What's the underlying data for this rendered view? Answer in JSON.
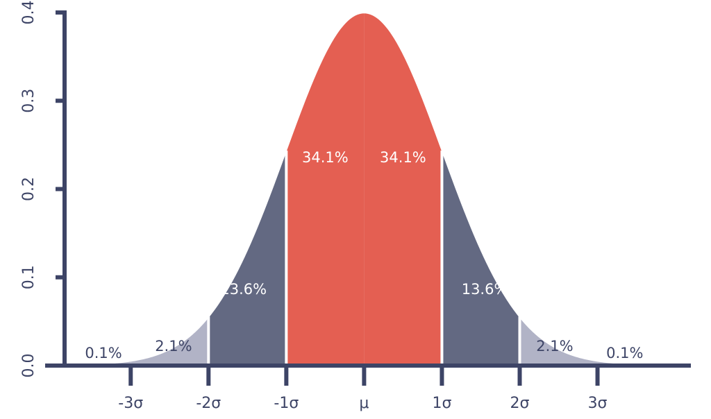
{
  "chart_data": {
    "type": "normal",
    "values": [
      0.1,
      2.1,
      13.6,
      34.1,
      34.1,
      13.6,
      2.1,
      0.1
    ],
    "value_labels": [
      "0.1%",
      "2.1%",
      "13.6%",
      "34.1%",
      "34.1%",
      "13.6%",
      "2.1%",
      "0.1%"
    ],
    "colors": [
      "#b1b3c6",
      "#b1b3c6",
      "#636982",
      "#e45f52",
      "#e45f52",
      "#636982",
      "#b1b3c6",
      "#b1b3c6"
    ],
    "axis_color": "#3d4466",
    "xlim": [
      -4.1,
      4.2
    ],
    "xticks": [
      {
        "value": -3,
        "label": "-3σ"
      },
      {
        "value": -2,
        "label": "-2σ"
      },
      {
        "value": -1,
        "label": "-1σ"
      },
      {
        "value": 0,
        "label": "μ"
      },
      {
        "value": 1,
        "label": "1σ"
      },
      {
        "value": 2,
        "label": "2σ"
      },
      {
        "value": 3,
        "label": "3σ"
      }
    ],
    "ylim": [
      0,
      0.4
    ],
    "yticks": [
      {
        "value": 0,
        "label": "0.0"
      },
      0.1,
      0.2,
      0.3,
      0.4
    ]
  }
}
